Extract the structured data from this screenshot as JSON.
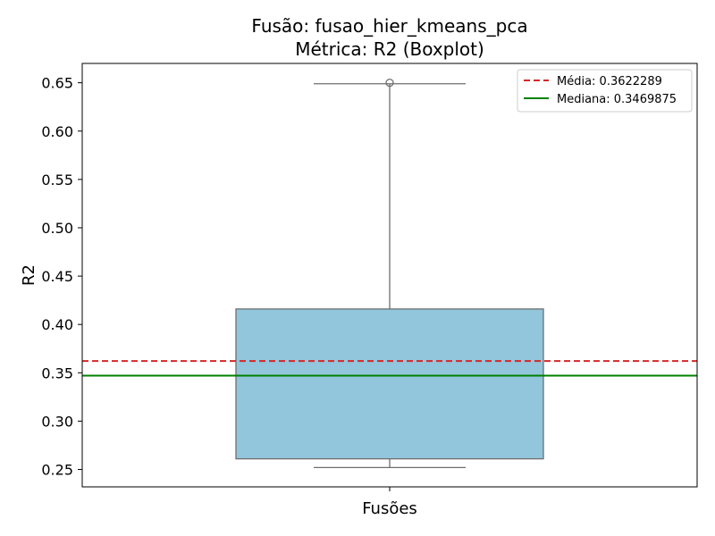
{
  "chart_data": {
    "type": "boxplot",
    "title": "Fusão: fusao_hier_kmeans_pca",
    "subtitle": "Métrica: R2 (Boxplot)",
    "xlabel": "",
    "ylabel": "R2",
    "categories": [
      "Fusões"
    ],
    "ylim": [
      0.232,
      0.67
    ],
    "yticks": [
      "0.25",
      "0.30",
      "0.35",
      "0.40",
      "0.45",
      "0.50",
      "0.55",
      "0.60",
      "0.65"
    ],
    "box": {
      "whisker_low": 0.252,
      "q1": 0.261,
      "median": 0.347,
      "q3": 0.416,
      "whisker_high": 0.649,
      "outliers": [
        0.65
      ]
    },
    "reference_lines": [
      {
        "label": "Média: 0.3622289",
        "value": 0.3622289,
        "color": "#d62728",
        "style": "dashed"
      },
      {
        "label": "Mediana: 0.3469875",
        "value": 0.3469875,
        "color": "#008000",
        "style": "solid"
      }
    ],
    "box_color": "#92c6dc",
    "legend_position": "top-right",
    "grid": false
  }
}
